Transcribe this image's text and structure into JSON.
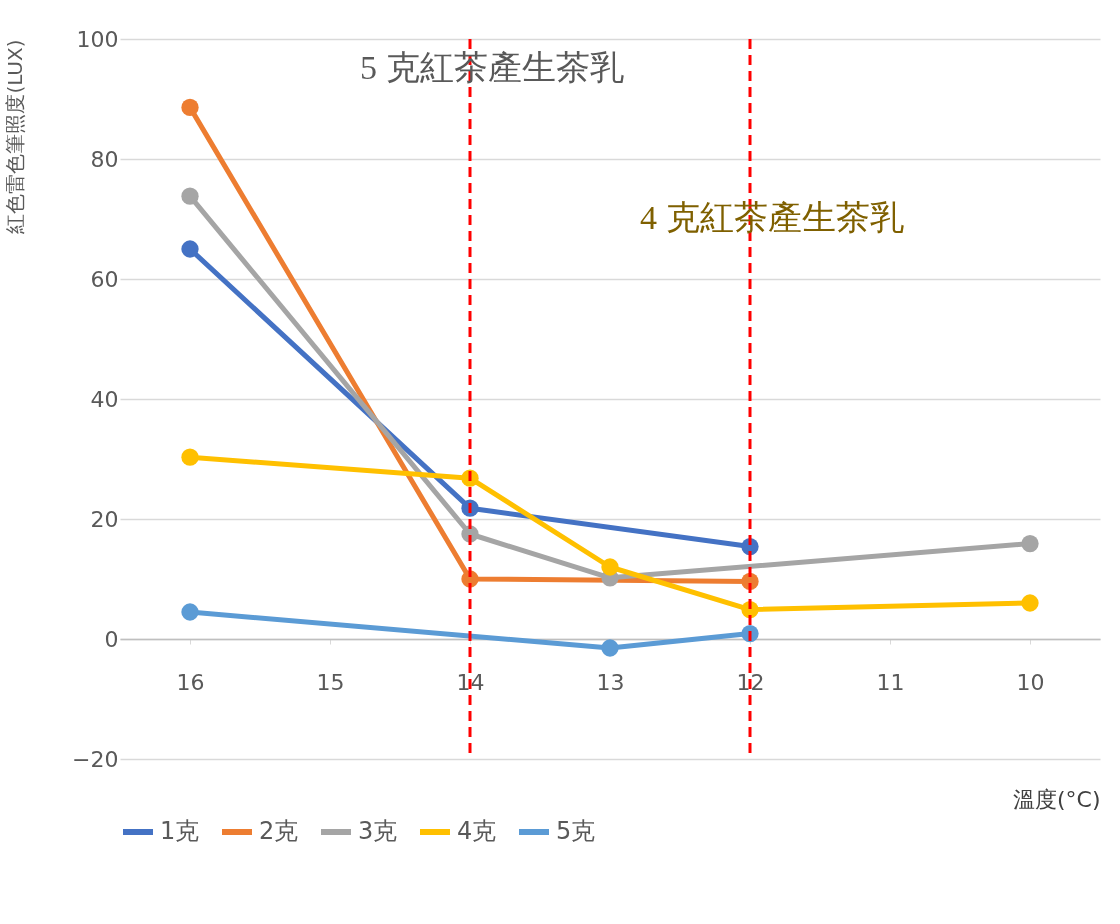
{
  "chart_data": {
    "type": "line",
    "xlabel": "溫度(°C)",
    "ylabel": "紅色雷色筆照度(LUX)",
    "xlim": [
      16.5,
      9.5
    ],
    "xticks": [
      {
        "value": 16,
        "label": "16"
      },
      {
        "value": 15,
        "label": "15"
      },
      {
        "value": 14,
        "label": "14"
      },
      {
        "value": 13,
        "label": "13"
      },
      {
        "value": 12,
        "label": "12"
      },
      {
        "value": 11,
        "label": "11"
      },
      {
        "value": 10,
        "label": "10"
      }
    ],
    "ylim": [
      -20,
      100
    ],
    "yticks": [
      -20,
      0,
      20,
      40,
      60,
      80,
      100
    ],
    "grid": "y",
    "legend": "bottom",
    "marker": "circle",
    "line_style": "solid",
    "series": [
      {
        "name": "1克",
        "color": "#4472c4",
        "x": [
          16,
          14,
          12
        ],
        "values": [
          65,
          21.8,
          15.4
        ]
      },
      {
        "name": "2克",
        "color": "#ed7d31",
        "x": [
          16,
          14,
          12
        ],
        "values": [
          88.6,
          10,
          9.6
        ]
      },
      {
        "name": "3克",
        "color": "#a5a5a5",
        "x": [
          16,
          14,
          13,
          10
        ],
        "values": [
          73.8,
          17.5,
          10.2,
          15.9
        ]
      },
      {
        "name": "4克",
        "color": "#ffc000",
        "x": [
          16,
          14,
          13,
          12,
          10
        ],
        "values": [
          30.3,
          26.8,
          12,
          4.9,
          6
        ]
      },
      {
        "name": "5克",
        "color": "#5b9bd5",
        "x": [
          16,
          13,
          12
        ],
        "values": [
          4.5,
          -1.5,
          0.9
        ]
      }
    ],
    "ref_lines": [
      {
        "axis": "x",
        "value": 14,
        "color": "#ff0000",
        "line_style": "dashed",
        "label": "5 克紅茶產生茶乳"
      },
      {
        "axis": "x",
        "value": 12,
        "color": "#ff0000",
        "line_style": "dashed",
        "label": "4 克紅茶產生茶乳"
      }
    ]
  }
}
